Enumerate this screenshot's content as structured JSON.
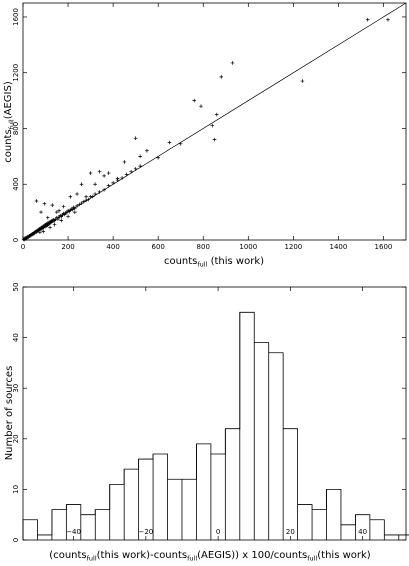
{
  "chart_data": [
    {
      "type": "scatter",
      "xlabel": {
        "main": "counts",
        "sub": "full",
        "suffix": " (this work)"
      },
      "ylabel": {
        "main": "counts",
        "sub": "full",
        "suffix": "(AEGIS)"
      },
      "xlim": [
        0,
        1700
      ],
      "ylim": [
        0,
        1700
      ],
      "x_ticks": [
        0,
        200,
        400,
        600,
        800,
        1000,
        1200,
        1400,
        1600
      ],
      "x_tick_labels": [
        "0",
        "200",
        "400",
        "600",
        "800",
        "1000",
        "1200",
        "1400",
        "1600"
      ],
      "y_ticks": [
        0,
        400,
        800,
        1200,
        1600
      ],
      "y_tick_labels": [
        "0",
        "400",
        "800",
        "1200",
        "1600"
      ],
      "reference_line": {
        "x": [
          0,
          1700
        ],
        "y": [
          0,
          1700
        ]
      },
      "points": [
        [
          3,
          5
        ],
        [
          6,
          4
        ],
        [
          8,
          12
        ],
        [
          10,
          8
        ],
        [
          12,
          15
        ],
        [
          15,
          12
        ],
        [
          18,
          20
        ],
        [
          20,
          18
        ],
        [
          22,
          25
        ],
        [
          25,
          22
        ],
        [
          28,
          30
        ],
        [
          30,
          28
        ],
        [
          33,
          35
        ],
        [
          35,
          32
        ],
        [
          38,
          40
        ],
        [
          40,
          38
        ],
        [
          42,
          45
        ],
        [
          45,
          42
        ],
        [
          48,
          50
        ],
        [
          50,
          47
        ],
        [
          52,
          55
        ],
        [
          55,
          60
        ],
        [
          58,
          55
        ],
        [
          60,
          65
        ],
        [
          62,
          60
        ],
        [
          65,
          70
        ],
        [
          68,
          66
        ],
        [
          70,
          75
        ],
        [
          72,
          80
        ],
        [
          75,
          72
        ],
        [
          78,
          85
        ],
        [
          80,
          78
        ],
        [
          82,
          90
        ],
        [
          85,
          82
        ],
        [
          88,
          95
        ],
        [
          90,
          100
        ],
        [
          92,
          88
        ],
        [
          95,
          105
        ],
        [
          98,
          95
        ],
        [
          100,
          110
        ],
        [
          103,
          100
        ],
        [
          105,
          115
        ],
        [
          108,
          105
        ],
        [
          110,
          120
        ],
        [
          113,
          112
        ],
        [
          115,
          125
        ],
        [
          118,
          120
        ],
        [
          120,
          130
        ],
        [
          123,
          125
        ],
        [
          125,
          135
        ],
        [
          128,
          130
        ],
        [
          130,
          140
        ],
        [
          133,
          135
        ],
        [
          135,
          145
        ],
        [
          140,
          138
        ],
        [
          145,
          150
        ],
        [
          150,
          160
        ],
        [
          155,
          150
        ],
        [
          160,
          165
        ],
        [
          165,
          175
        ],
        [
          170,
          168
        ],
        [
          175,
          180
        ],
        [
          180,
          190
        ],
        [
          185,
          183
        ],
        [
          190,
          195
        ],
        [
          195,
          200
        ],
        [
          200,
          210
        ],
        [
          205,
          203
        ],
        [
          210,
          215
        ],
        [
          215,
          222
        ],
        [
          220,
          218
        ],
        [
          225,
          235
        ],
        [
          230,
          228
        ],
        [
          240,
          245
        ],
        [
          250,
          255
        ],
        [
          260,
          265
        ],
        [
          270,
          275
        ],
        [
          280,
          285
        ],
        [
          290,
          290
        ],
        [
          300,
          310
        ],
        [
          310,
          312
        ],
        [
          320,
          330
        ],
        [
          340,
          345
        ],
        [
          360,
          360
        ],
        [
          380,
          390
        ],
        [
          400,
          410
        ],
        [
          420,
          430
        ],
        [
          440,
          445
        ],
        [
          460,
          470
        ],
        [
          480,
          490
        ],
        [
          500,
          510
        ],
        [
          520,
          530
        ],
        [
          60,
          280
        ],
        [
          80,
          200
        ],
        [
          95,
          260
        ],
        [
          130,
          250
        ],
        [
          160,
          210
        ],
        [
          210,
          310
        ],
        [
          240,
          330
        ],
        [
          260,
          400
        ],
        [
          280,
          310
        ],
        [
          300,
          480
        ],
        [
          320,
          400
        ],
        [
          340,
          490
        ],
        [
          360,
          460
        ],
        [
          380,
          480
        ],
        [
          420,
          440
        ],
        [
          450,
          560
        ],
        [
          110,
          160
        ],
        [
          150,
          200
        ],
        [
          180,
          240
        ],
        [
          120,
          90
        ],
        [
          140,
          110
        ],
        [
          170,
          140
        ],
        [
          200,
          170
        ],
        [
          230,
          200
        ],
        [
          90,
          60
        ],
        [
          75,
          55
        ],
        [
          500,
          730
        ],
        [
          520,
          600
        ],
        [
          550,
          640
        ],
        [
          600,
          590
        ],
        [
          650,
          700
        ],
        [
          700,
          690
        ],
        [
          760,
          1000
        ],
        [
          790,
          960
        ],
        [
          840,
          820
        ],
        [
          850,
          720
        ],
        [
          860,
          900
        ],
        [
          880,
          1170
        ],
        [
          930,
          1270
        ],
        [
          1240,
          1140
        ],
        [
          1530,
          1580
        ],
        [
          1620,
          1580
        ]
      ]
    },
    {
      "type": "histogram",
      "xlabel": "(counts_full(this work)-counts_full(AEGIS)) x 100/counts_full(this work)",
      "xlabel_parts": [
        {
          "t": "(counts",
          "sub": false
        },
        {
          "t": "full",
          "sub": true
        },
        {
          "t": "(this work)-counts",
          "sub": false
        },
        {
          "t": "full",
          "sub": true
        },
        {
          "t": "(AEGIS)) x 100/counts",
          "sub": false
        },
        {
          "t": "full",
          "sub": true
        },
        {
          "t": "(this work)",
          "sub": false
        }
      ],
      "ylabel": "Number of sources",
      "xlim": [
        -54,
        52
      ],
      "ylim": [
        0,
        50
      ],
      "x_ticks": [
        -40,
        -20,
        0,
        20,
        40
      ],
      "x_tick_labels": [
        "−40",
        "−20",
        "0",
        "20",
        "40"
      ],
      "y_ticks": [
        0,
        10,
        20,
        30,
        40,
        50
      ],
      "y_tick_labels": [
        "0",
        "10",
        "20",
        "30",
        "40",
        "50"
      ],
      "bin_width": 4,
      "bin_start": -54,
      "counts": [
        4,
        1,
        6,
        7,
        5,
        6,
        11,
        14,
        16,
        17,
        12,
        12,
        19,
        17,
        22,
        45,
        39,
        37,
        22,
        7,
        6,
        10,
        3,
        5,
        4,
        1,
        1,
        0,
        1
      ]
    }
  ]
}
